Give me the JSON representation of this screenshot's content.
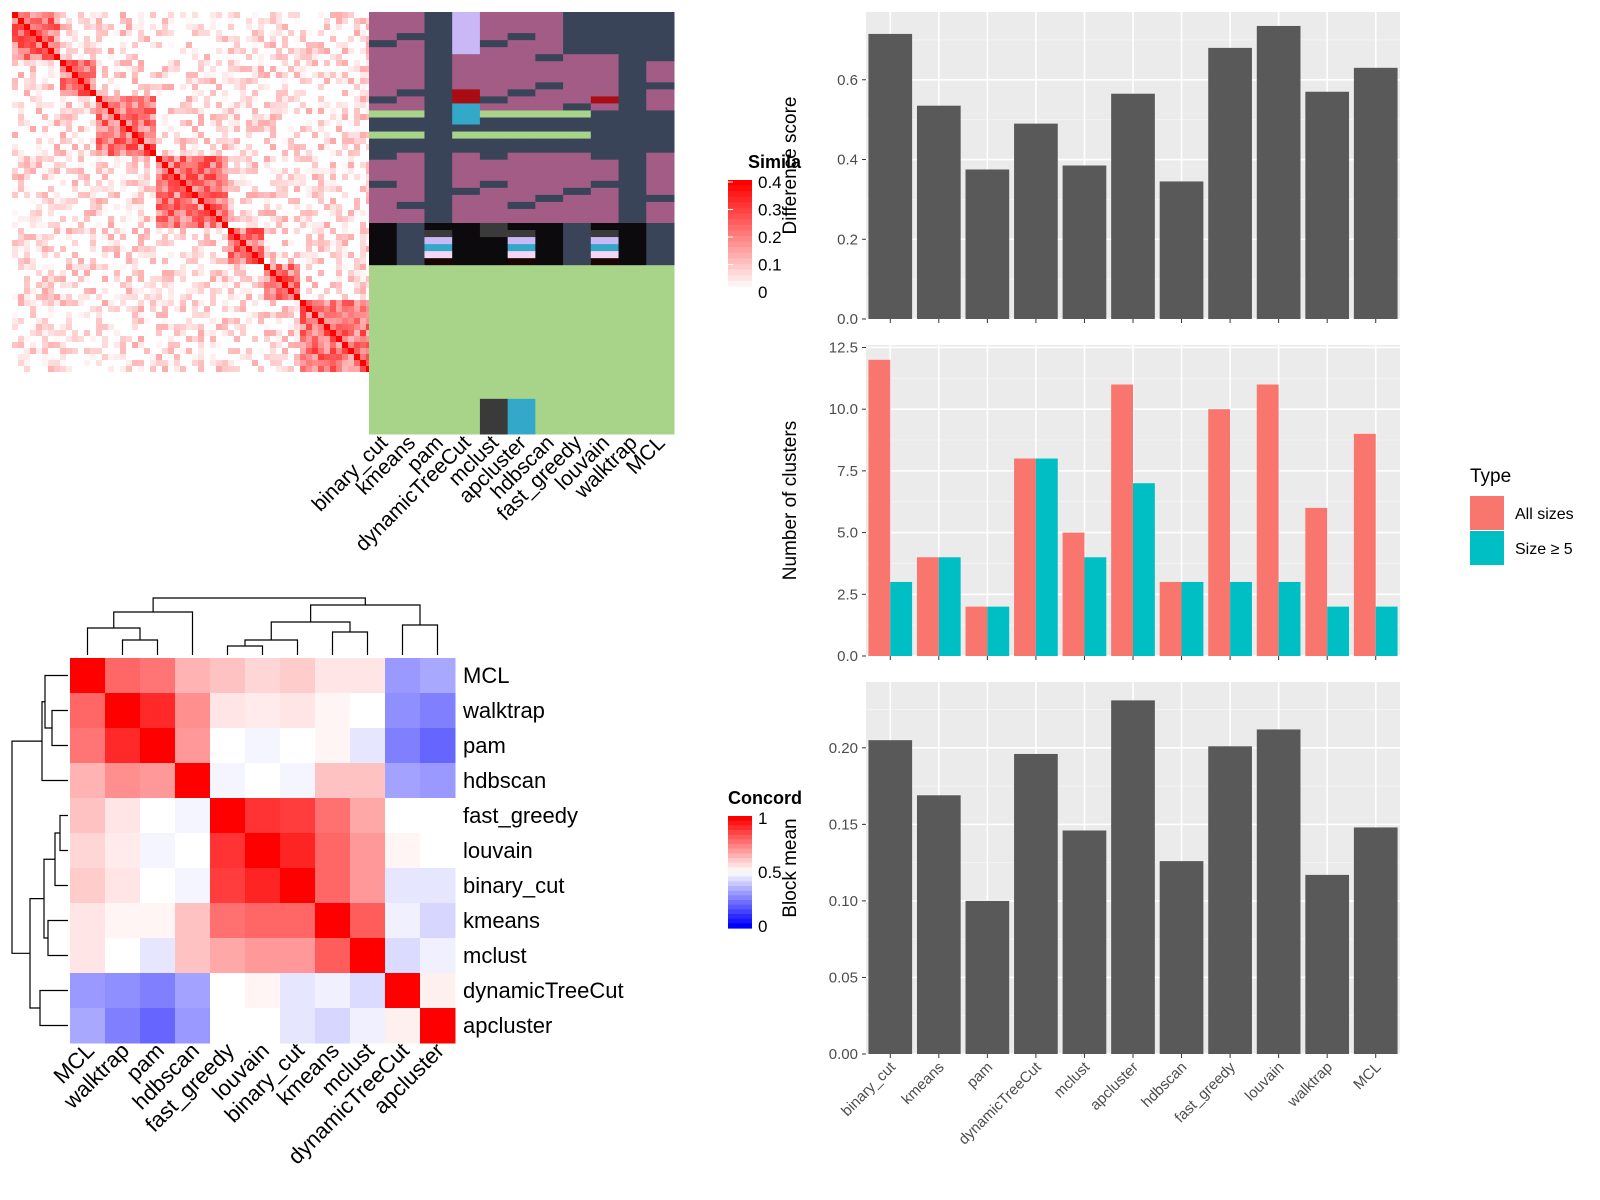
{
  "colors": {
    "panel_bg": "#EBEBEB",
    "bar": "#595959",
    "all_sizes": "#F8766D",
    "size_ge5": "#00BFC4",
    "sim_high": "#FF0000",
    "conc_low": "#0000FF"
  },
  "top_heatmap": {
    "method_labels": [
      "binary_cut",
      "kmeans",
      "pam",
      "dynamicTreeCut",
      "mclust",
      "apcluster",
      "hdbscan",
      "fast_greedy",
      "louvain",
      "walktrap",
      "MCL"
    ],
    "legend_title": "Simila",
    "legend_ticks": [
      "0.4",
      "0.3",
      "0.2",
      "0.1",
      "0"
    ]
  },
  "concordance": {
    "row_labels": [
      "MCL",
      "walktrap",
      "pam",
      "hdbscan",
      "fast_greedy",
      "louvain",
      "binary_cut",
      "kmeans",
      "mclust",
      "dynamicTreeCut",
      "apcluster"
    ],
    "col_labels": [
      "MCL",
      "walktrap",
      "pam",
      "hdbscan",
      "fast_greedy",
      "louvain",
      "binary_cut",
      "kmeans",
      "mclust",
      "dynamicTreeCut",
      "apcluster"
    ],
    "legend_title": "Concord",
    "legend_ticks": [
      "1",
      "0.5",
      "0"
    ],
    "matrix": [
      [
        1.0,
        0.8,
        0.77,
        0.65,
        0.62,
        0.58,
        0.6,
        0.55,
        0.55,
        0.3,
        0.33
      ],
      [
        0.8,
        1.0,
        0.92,
        0.72,
        0.55,
        0.54,
        0.55,
        0.52,
        0.5,
        0.28,
        0.25
      ],
      [
        0.77,
        0.92,
        1.0,
        0.7,
        0.5,
        0.48,
        0.5,
        0.52,
        0.45,
        0.25,
        0.2
      ],
      [
        0.65,
        0.72,
        0.7,
        1.0,
        0.48,
        0.5,
        0.48,
        0.62,
        0.62,
        0.32,
        0.3
      ],
      [
        0.62,
        0.55,
        0.5,
        0.48,
        1.0,
        0.9,
        0.88,
        0.78,
        0.67,
        0.5,
        0.5
      ],
      [
        0.58,
        0.54,
        0.48,
        0.5,
        0.9,
        1.0,
        0.93,
        0.8,
        0.7,
        0.52,
        0.5
      ],
      [
        0.6,
        0.55,
        0.5,
        0.48,
        0.88,
        0.93,
        1.0,
        0.8,
        0.7,
        0.45,
        0.45
      ],
      [
        0.55,
        0.52,
        0.52,
        0.62,
        0.78,
        0.8,
        0.8,
        1.0,
        0.82,
        0.47,
        0.42
      ],
      [
        0.55,
        0.5,
        0.45,
        0.62,
        0.67,
        0.7,
        0.7,
        0.82,
        1.0,
        0.43,
        0.47
      ],
      [
        0.3,
        0.28,
        0.25,
        0.32,
        0.5,
        0.52,
        0.45,
        0.47,
        0.43,
        1.0,
        0.53
      ],
      [
        0.33,
        0.25,
        0.2,
        0.3,
        0.5,
        0.5,
        0.45,
        0.42,
        0.47,
        0.53,
        1.0
      ]
    ]
  },
  "chart_data": [
    {
      "type": "bar",
      "categories": [
        "binary_cut",
        "kmeans",
        "pam",
        "dynamicTreeCut",
        "mclust",
        "apcluster",
        "hdbscan",
        "fast_greedy",
        "louvain",
        "walktrap",
        "MCL"
      ],
      "values": [
        0.715,
        0.535,
        0.375,
        0.49,
        0.385,
        0.565,
        0.345,
        0.68,
        0.735,
        0.57,
        0.63
      ],
      "ylabel": "Difference score",
      "ylim": [
        0,
        0.77
      ],
      "yticks": [
        "0.0",
        "0.2",
        "0.4",
        "0.6"
      ],
      "grid": true
    },
    {
      "type": "bar",
      "categories": [
        "binary_cut",
        "kmeans",
        "pam",
        "dynamicTreeCut",
        "mclust",
        "apcluster",
        "hdbscan",
        "fast_greedy",
        "louvain",
        "walktrap",
        "MCL"
      ],
      "series": [
        {
          "name": "All sizes",
          "values": [
            12,
            4,
            2,
            8,
            5,
            11,
            3,
            10,
            11,
            6,
            9
          ]
        },
        {
          "name": "Size ≥ 5",
          "values": [
            3,
            4,
            2,
            8,
            4,
            7,
            3,
            3,
            3,
            2,
            2
          ]
        }
      ],
      "ylabel": "Number of clusters",
      "ylim": [
        0,
        12.6
      ],
      "yticks": [
        "0.0",
        "2.5",
        "5.0",
        "7.5",
        "10.0",
        "12.5"
      ],
      "legend_title": "Type",
      "legend_position": "right",
      "grid": true
    },
    {
      "type": "bar",
      "categories": [
        "binary_cut",
        "kmeans",
        "pam",
        "dynamicTreeCut",
        "mclust",
        "apcluster",
        "hdbscan",
        "fast_greedy",
        "louvain",
        "walktrap",
        "MCL"
      ],
      "values": [
        0.205,
        0.169,
        0.1,
        0.196,
        0.146,
        0.231,
        0.126,
        0.201,
        0.212,
        0.117,
        0.148
      ],
      "ylabel": "Block mean",
      "ylim": [
        0,
        0.243
      ],
      "yticks": [
        "0.00",
        "0.05",
        "0.10",
        "0.15",
        "0.20"
      ],
      "grid": true
    }
  ]
}
